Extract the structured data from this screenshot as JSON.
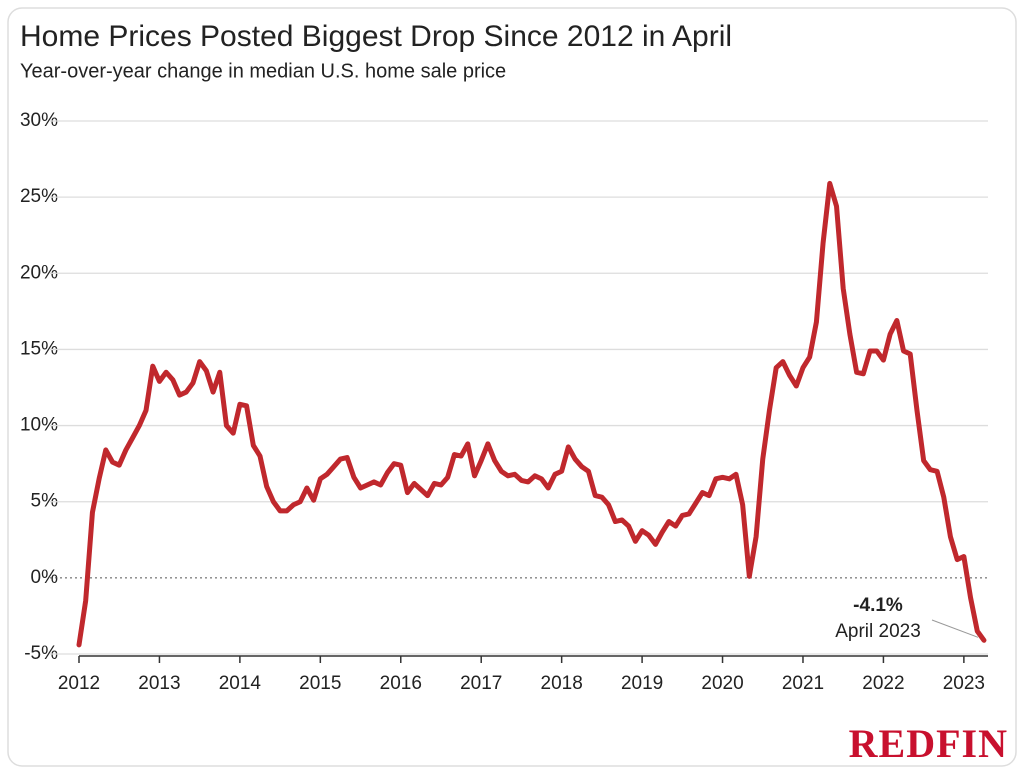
{
  "chart_data": {
    "type": "line",
    "title": "Home Prices Posted Biggest Drop Since 2012 in April",
    "subtitle": "Year-over-year change in median U.S. home sale price",
    "brand": "REDFIN",
    "x": [
      2012,
      2012.083,
      2012.167,
      2012.25,
      2012.333,
      2012.417,
      2012.5,
      2012.583,
      2012.667,
      2012.75,
      2012.833,
      2012.917,
      2013,
      2013.083,
      2013.167,
      2013.25,
      2013.333,
      2013.417,
      2013.5,
      2013.583,
      2013.667,
      2013.75,
      2013.833,
      2013.917,
      2014,
      2014.083,
      2014.167,
      2014.25,
      2014.333,
      2014.417,
      2014.5,
      2014.583,
      2014.667,
      2014.75,
      2014.833,
      2014.917,
      2015,
      2015.083,
      2015.167,
      2015.25,
      2015.333,
      2015.417,
      2015.5,
      2015.583,
      2015.667,
      2015.75,
      2015.833,
      2015.917,
      2016,
      2016.083,
      2016.167,
      2016.25,
      2016.333,
      2016.417,
      2016.5,
      2016.583,
      2016.667,
      2016.75,
      2016.833,
      2016.917,
      2017,
      2017.083,
      2017.167,
      2017.25,
      2017.333,
      2017.417,
      2017.5,
      2017.583,
      2017.667,
      2017.75,
      2017.833,
      2017.917,
      2018,
      2018.083,
      2018.167,
      2018.25,
      2018.333,
      2018.417,
      2018.5,
      2018.583,
      2018.667,
      2018.75,
      2018.833,
      2018.917,
      2019,
      2019.083,
      2019.167,
      2019.25,
      2019.333,
      2019.417,
      2019.5,
      2019.583,
      2019.667,
      2019.75,
      2019.833,
      2019.917,
      2020,
      2020.083,
      2020.167,
      2020.25,
      2020.333,
      2020.417,
      2020.5,
      2020.583,
      2020.667,
      2020.75,
      2020.833,
      2020.917,
      2021,
      2021.083,
      2021.167,
      2021.25,
      2021.333,
      2021.417,
      2021.5,
      2021.583,
      2021.667,
      2021.75,
      2021.833,
      2021.917,
      2022,
      2022.083,
      2022.167,
      2022.25,
      2022.333,
      2022.417,
      2022.5,
      2022.583,
      2022.667,
      2022.75,
      2022.833,
      2022.917,
      2023,
      2023.083,
      2023.167,
      2023.25
    ],
    "series": [
      {
        "name": "Year-over-year change",
        "color": "#c0282d",
        "values": [
          -4.4,
          -1.5,
          4.3,
          6.5,
          8.4,
          7.6,
          7.4,
          8.4,
          9.2,
          10.0,
          11.0,
          13.9,
          12.9,
          13.5,
          13.0,
          12.0,
          12.2,
          12.8,
          14.2,
          13.6,
          12.2,
          13.5,
          10.0,
          9.5,
          11.4,
          11.3,
          8.7,
          8.0,
          6.0,
          5.0,
          4.4,
          4.4,
          4.8,
          5.0,
          5.9,
          5.1,
          6.5,
          6.8,
          7.3,
          7.8,
          7.9,
          6.6,
          5.9,
          6.1,
          6.3,
          6.1,
          6.9,
          7.5,
          7.4,
          5.6,
          6.2,
          5.8,
          5.4,
          6.2,
          6.1,
          6.6,
          8.1,
          8.0,
          8.8,
          6.7,
          7.7,
          8.8,
          7.7,
          7.0,
          6.7,
          6.8,
          6.4,
          6.3,
          6.7,
          6.5,
          5.9,
          6.8,
          7.0,
          8.6,
          7.8,
          7.3,
          7.0,
          5.4,
          5.3,
          4.8,
          3.7,
          3.8,
          3.4,
          2.4,
          3.1,
          2.8,
          2.2,
          3.0,
          3.7,
          3.4,
          4.1,
          4.2,
          4.9,
          5.6,
          5.4,
          6.5,
          6.6,
          6.5,
          6.8,
          4.8,
          0.1,
          2.7,
          7.8,
          11.0,
          13.8,
          14.2,
          13.3,
          12.6,
          13.8,
          14.5,
          16.8,
          22.0,
          25.9,
          24.4,
          19.0,
          16.0,
          13.5,
          13.4,
          14.9,
          14.9,
          14.3,
          16.0,
          16.9,
          14.9,
          14.7,
          11.0,
          7.7,
          7.1,
          7.0,
          5.3,
          2.7,
          1.2,
          1.4,
          -1.3,
          -3.5,
          -4.1
        ]
      }
    ],
    "xlim": [
      2012,
      2023.3
    ],
    "xticks": [
      2012,
      2013,
      2014,
      2015,
      2016,
      2017,
      2018,
      2019,
      2020,
      2021,
      2022,
      2023
    ],
    "ylim": [
      -5,
      30
    ],
    "yticks": [
      {
        "value": -5,
        "label": "-5%"
      },
      {
        "value": 0,
        "label": "0%"
      },
      {
        "value": 5,
        "label": "5%"
      },
      {
        "value": 10,
        "label": "10%"
      },
      {
        "value": 15,
        "label": "15%"
      },
      {
        "value": 20,
        "label": "20%"
      },
      {
        "value": 25,
        "label": "25%"
      },
      {
        "value": 30,
        "label": "30%"
      }
    ],
    "grid": true,
    "annotation": {
      "x": 2023.25,
      "value": -4.1,
      "label": "-4.1%",
      "text": "April 2023"
    }
  }
}
